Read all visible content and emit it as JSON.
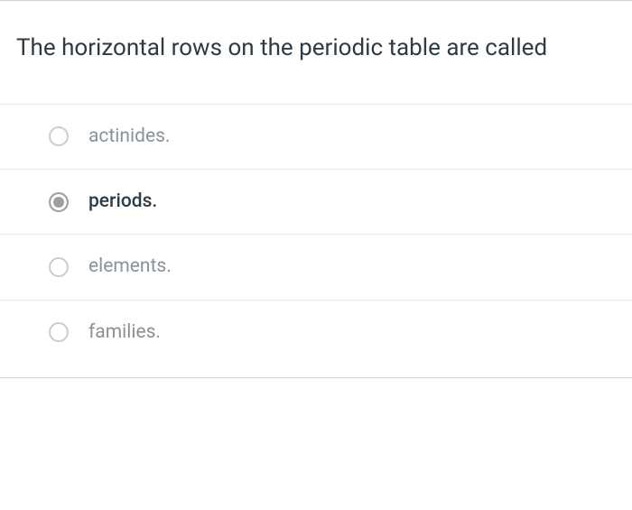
{
  "question": {
    "text": "The horizontal rows on the periodic table are called"
  },
  "options": [
    {
      "label": "actinides.",
      "selected": false
    },
    {
      "label": "periods.",
      "selected": true
    },
    {
      "label": "elements.",
      "selected": false
    },
    {
      "label": "families.",
      "selected": false
    }
  ],
  "colors": {
    "text_primary": "#2d3b45",
    "text_muted": "#8a9299",
    "radio_border": "#c7cdd1",
    "radio_selected": "#9aa0a6",
    "divider": "#e8e8e8",
    "container_border": "#d0d0d0",
    "background": "#ffffff"
  }
}
